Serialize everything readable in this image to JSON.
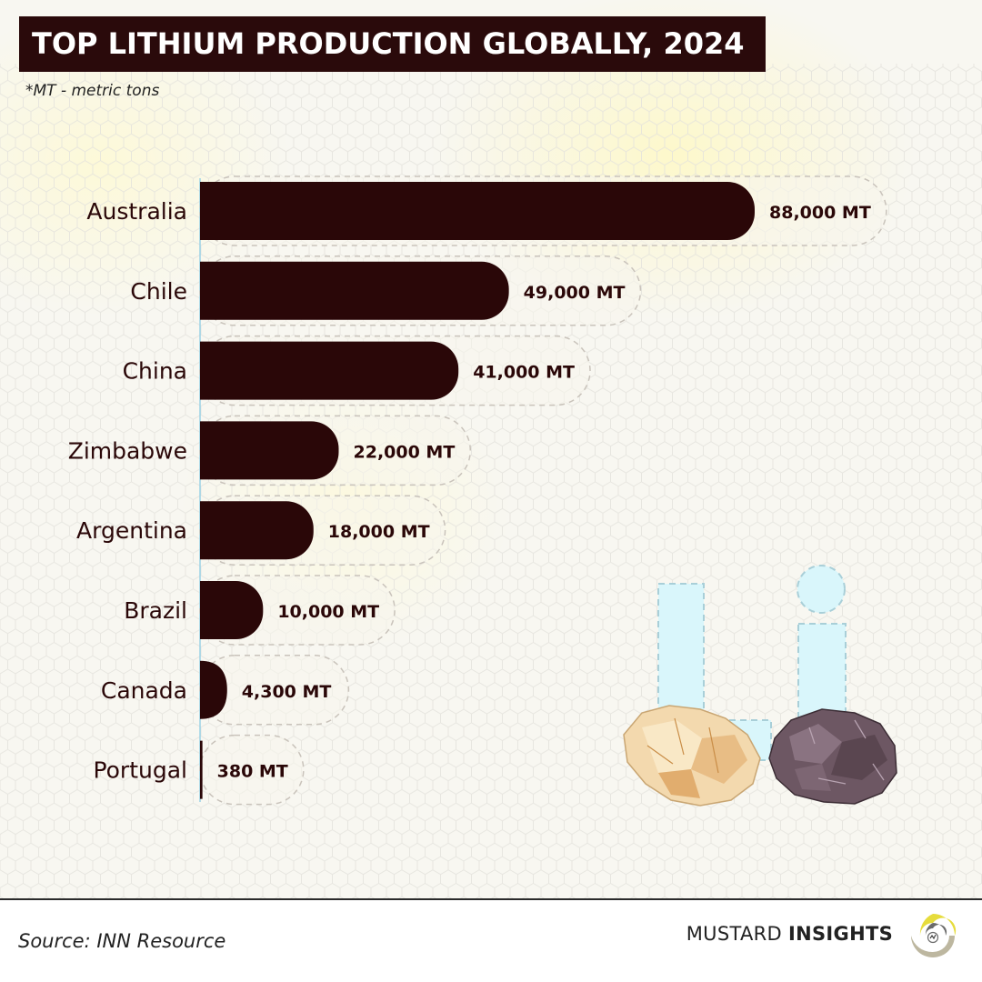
{
  "header": {
    "title": "TOP LITHIUM PRODUCTION GLOBALLY, 2024",
    "footnote": "*MT - metric tons"
  },
  "chart_data": {
    "type": "bar",
    "orientation": "horizontal",
    "title": "TOP LITHIUM PRODUCTION GLOBALLY, 2024",
    "unit": "MT",
    "categories": [
      "Australia",
      "Chile",
      "China",
      "Zimbabwe",
      "Argentina",
      "Brazil",
      "Canada",
      "Portugal"
    ],
    "values": [
      88000,
      49000,
      41000,
      22000,
      18000,
      10000,
      4300,
      380
    ],
    "value_labels": [
      "88,000 MT",
      "49,000 MT",
      "41,000 MT",
      "22,000 MT",
      "18,000 MT",
      "10,000 MT",
      "4,300 MT",
      "380 MT"
    ],
    "xlim": [
      0,
      88000
    ],
    "xlabel": "",
    "ylabel": "",
    "grid": false,
    "bar_color": "#2a0708"
  },
  "decoration": {
    "symbol_text": "Li",
    "symbol_color": "#d7f6fb"
  },
  "footer": {
    "source": "Source: INN Resource",
    "brand_regular": "MUSTARD",
    "brand_bold": "INSIGHTS",
    "logo_icon": "mustard-swirl-icon",
    "logo_color": "#e6dc3c"
  }
}
